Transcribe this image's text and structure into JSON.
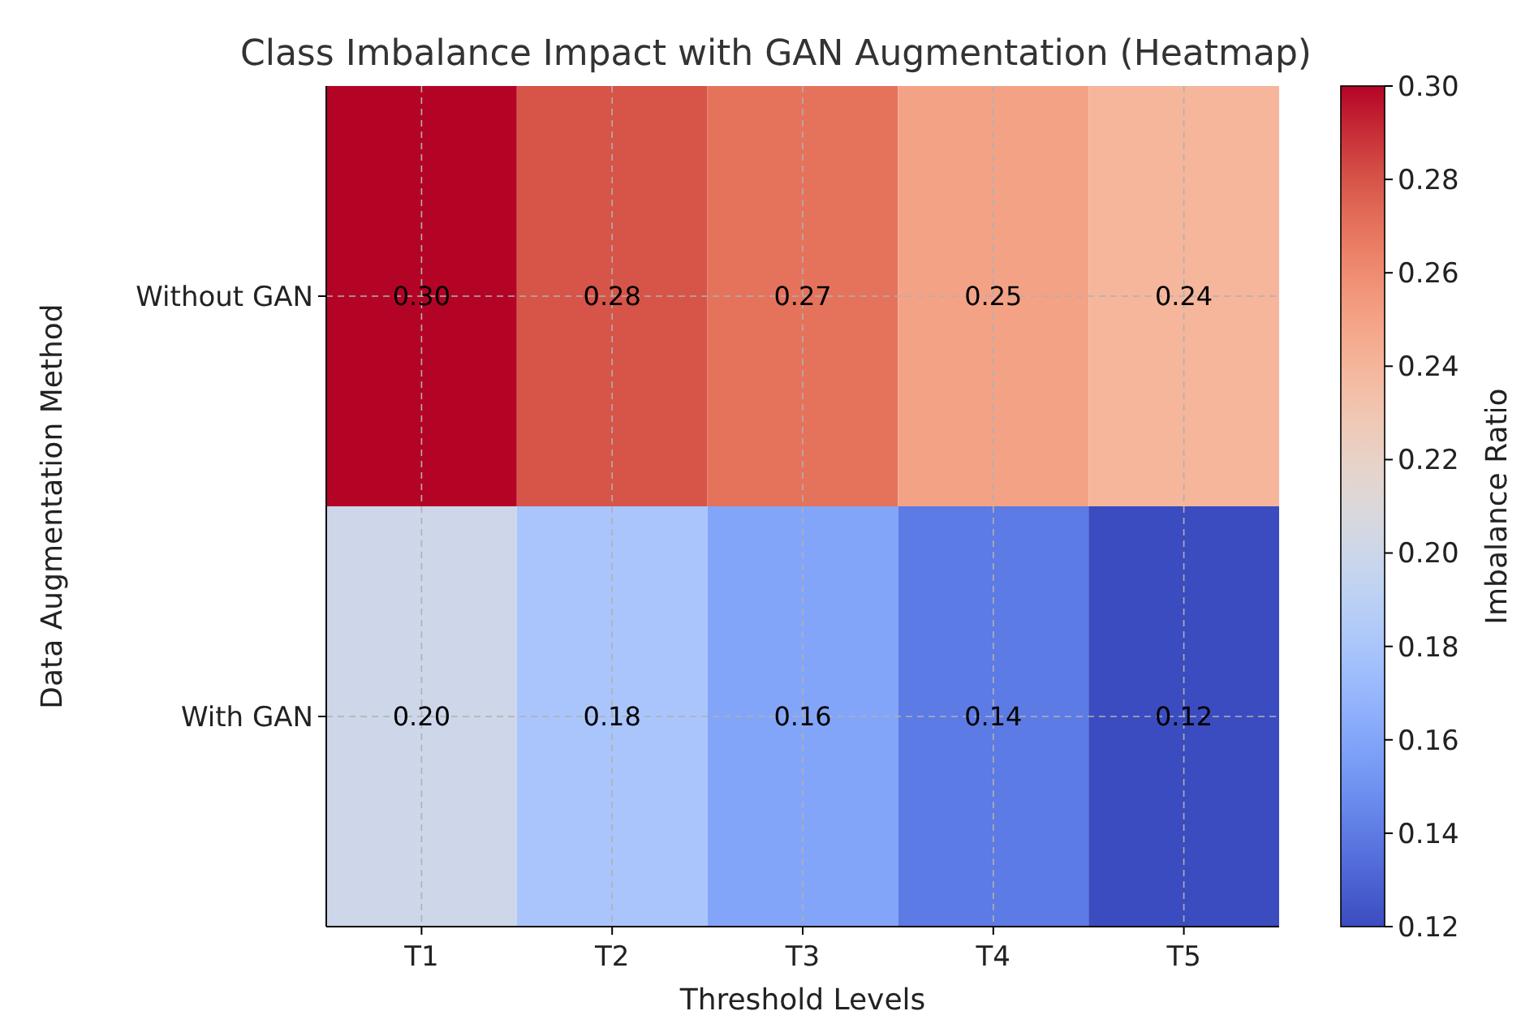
{
  "chart_data": {
    "type": "heatmap",
    "title": "Class Imbalance Impact with GAN Augmentation (Heatmap)",
    "xlabel": "Threshold Levels",
    "ylabel": "Data Augmentation Method",
    "clabel": "Imbalance Ratio",
    "categories": [
      "T1",
      "T2",
      "T3",
      "T4",
      "T5"
    ],
    "y_categories": [
      "Without GAN",
      "With GAN"
    ],
    "cells": [
      [
        0.3,
        0.28,
        0.27,
        0.25,
        0.24
      ],
      [
        0.2,
        0.18,
        0.16,
        0.14,
        0.12
      ]
    ],
    "cell_labels": [
      [
        "0.30",
        "0.28",
        "0.27",
        "0.25",
        "0.24"
      ],
      [
        "0.20",
        "0.18",
        "0.16",
        "0.14",
        "0.12"
      ]
    ],
    "clim": [
      0.12,
      0.3
    ],
    "cticks": [
      {
        "value": 0.12,
        "label": "0.12"
      },
      {
        "value": 0.14,
        "label": "0.14"
      },
      {
        "value": 0.16,
        "label": "0.16"
      },
      {
        "value": 0.18,
        "label": "0.18"
      },
      {
        "value": 0.2,
        "label": "0.20"
      },
      {
        "value": 0.22,
        "label": "0.22"
      },
      {
        "value": 0.24,
        "label": "0.24"
      },
      {
        "value": 0.26,
        "label": "0.26"
      },
      {
        "value": 0.28,
        "label": "0.28"
      },
      {
        "value": 0.3,
        "label": "0.30"
      }
    ],
    "grid": true
  }
}
